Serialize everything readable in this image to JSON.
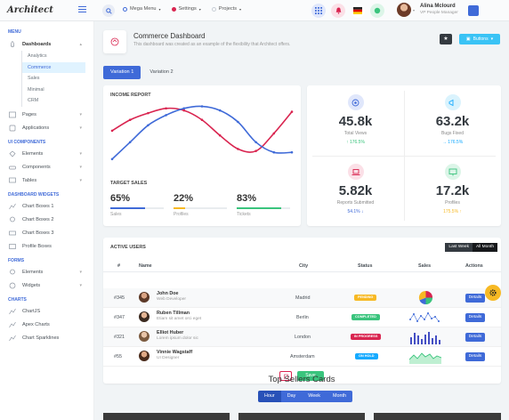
{
  "header": {
    "logo": "Architect",
    "nav": [
      {
        "label": "Mega Menu",
        "dot": "#3f6ad8"
      },
      {
        "label": "Settings",
        "dot": "#d92550"
      },
      {
        "label": "Projects",
        "dot": "#c9ced6"
      }
    ],
    "user_name": "Alina Mclourd",
    "user_role": "VP People Manager"
  },
  "sidebar": {
    "sections": [
      {
        "title": "MENU"
      },
      {
        "title": "UI COMPONENTS"
      },
      {
        "title": "DASHBOARD WIDGETS"
      },
      {
        "title": "FORMS"
      },
      {
        "title": "CHARTS"
      }
    ],
    "dashboards": "Dashboards",
    "dash_sub": [
      "Analytics",
      "Commerce",
      "Sales",
      "Minimal",
      "CRM"
    ],
    "menu_items": [
      "Pages",
      "Applications"
    ],
    "ui_items": [
      "Elements",
      "Components",
      "Tables"
    ],
    "widget_items": [
      "Chart Boxes 1",
      "Chart Boxes 2",
      "Chart Boxes 3",
      "Profile Boxes"
    ],
    "form_items": [
      "Elements",
      "Widgets"
    ],
    "chart_items": [
      "ChartJS",
      "Apex Charts",
      "Chart Sparklines"
    ]
  },
  "page": {
    "title": "Commerce Dashboard",
    "subtitle": "This dashboard was created as an example of the flexibility that Architect offers.",
    "buttons_label": "Buttons",
    "tabs": [
      "Variation 1",
      "Variation 2"
    ]
  },
  "income": {
    "title": "INCOME REPORT",
    "target_title": "TARGET SALES",
    "metrics": [
      {
        "value": "65%",
        "label": "Sales",
        "fill": 0.65,
        "color": "#3f6ad8"
      },
      {
        "value": "22%",
        "label": "Profiles",
        "fill": 0.22,
        "color": "#f7b924"
      },
      {
        "value": "83%",
        "label": "Tickets",
        "fill": 0.83,
        "color": "#3ac47d"
      }
    ]
  },
  "stats": [
    {
      "value": "45.8k",
      "label": "Total Views",
      "trend": "176.5%",
      "dir": "up",
      "color": "#3ac47d",
      "icon_bg": "#e0e7fb",
      "icon_color": "#3f6ad8"
    },
    {
      "value": "63.2k",
      "label": "Bugs Fixed",
      "trend": "176.5%",
      "dir": "right",
      "color": "#16aaff",
      "icon_bg": "#daf3fd",
      "icon_color": "#16aaff"
    },
    {
      "value": "5.82k",
      "label": "Reports Submitted",
      "trend": "54.1%",
      "dir": "down",
      "color": "#3f6ad8",
      "icon_bg": "#fbe0e7",
      "icon_color": "#d92550"
    },
    {
      "value": "17.2k",
      "label": "Profiles",
      "trend": "175.5%",
      "dir": "up",
      "color": "#f7b924",
      "icon_bg": "#dcf5e8",
      "icon_color": "#3ac47d"
    }
  ],
  "table": {
    "title": "ACTIVE USERS",
    "toggle": [
      "Last Week",
      "All Month"
    ],
    "headers": [
      "#",
      "Name",
      "City",
      "Status",
      "Sales",
      "Actions"
    ],
    "rows": [
      {
        "id": "#345",
        "name": "John Doe",
        "role": "Web Developer",
        "city": "Madrid",
        "status": "PENDING",
        "status_color": "#f7b924",
        "chart": "pie",
        "action": "Details"
      },
      {
        "id": "#347",
        "name": "Ruben Tillman",
        "role": "Etiam sit amet orci eget",
        "city": "Berlin",
        "status": "COMPLETED",
        "status_color": "#3ac47d",
        "chart": "dots",
        "action": "Details"
      },
      {
        "id": "#321",
        "name": "Elliot Huber",
        "role": "Lorem ipsum dolor sic",
        "city": "London",
        "status": "IN PROGRESS",
        "status_color": "#d92550",
        "chart": "bars",
        "action": "Details"
      },
      {
        "id": "#55",
        "name": "Vinnie Wagstaff",
        "role": "UI Designer",
        "city": "Amsterdam",
        "status": "ON HOLD",
        "status_color": "#16aaff",
        "chart": "area",
        "action": "Details"
      }
    ],
    "save_label": "Save"
  },
  "sellers": {
    "title": "Top Sellers Cards",
    "segments": [
      "Hour",
      "Day",
      "Week",
      "Month"
    ]
  },
  "chart_data": {
    "type": "line",
    "title": "INCOME REPORT",
    "x": [
      0,
      1,
      2,
      3,
      4,
      5,
      6,
      7,
      8,
      9,
      10
    ],
    "series": [
      {
        "values": [
          62,
          78,
          88,
          95,
          92,
          78,
          55,
          35,
          32,
          58,
          90
        ],
        "color": "#d92550"
      },
      {
        "values": [
          20,
          45,
          70,
          85,
          95,
          98,
          92,
          75,
          45,
          30,
          30
        ],
        "color": "#3f6ad8"
      }
    ],
    "ylim": [
      0,
      100
    ],
    "grid": false
  }
}
